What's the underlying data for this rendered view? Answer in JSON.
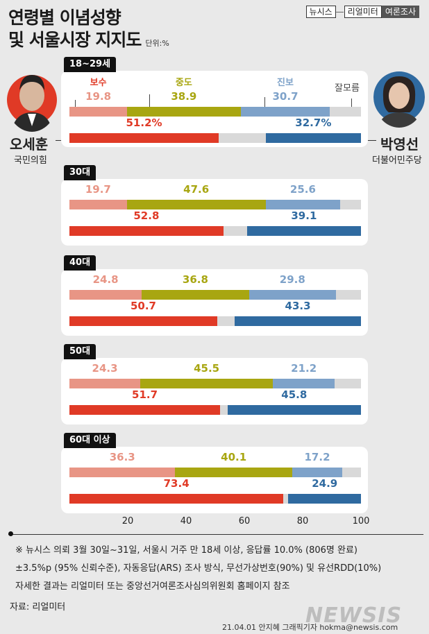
{
  "header": {
    "title_line1": "연령별 이념성향",
    "title_line2": "및 서울시장 지지도",
    "unit": "단위:%",
    "brand_a": "뉴시스",
    "brand_dash": "—",
    "brand_b": "리얼미터",
    "brand_c": "여론조사"
  },
  "candidates": {
    "left": {
      "name": "오세훈",
      "party": "국민의힘",
      "color": "#e03a26"
    },
    "right": {
      "name": "박영선",
      "party": "더불어민주당",
      "color": "#2f6aa0"
    }
  },
  "colors": {
    "conservative": "#e89585",
    "moderate": "#a8a611",
    "progressive": "#7ea2c9",
    "undecided": "#d9d9d9",
    "oh": "#e03a26",
    "park": "#2f6aa0"
  },
  "chart_data": {
    "type": "bar",
    "orientation": "horizontal-stacked",
    "xlim": [
      0,
      100
    ],
    "xticks": [
      20,
      40,
      60,
      80,
      100
    ],
    "ideology_labels": {
      "conservative": "보수",
      "moderate": "중도",
      "progressive": "진보",
      "undecided": "잘모름"
    },
    "groups": [
      {
        "age": "18~29세",
        "ideology": {
          "conservative": 19.8,
          "moderate": 38.9,
          "progressive": 30.7
        },
        "support": {
          "oh": 51.2,
          "park": 32.7
        },
        "oh_label": "51.2%",
        "park_label": "32.7%"
      },
      {
        "age": "30대",
        "ideology": {
          "conservative": 19.7,
          "moderate": 47.6,
          "progressive": 25.6
        },
        "support": {
          "oh": 52.8,
          "park": 39.1
        },
        "oh_label": "52.8",
        "park_label": "39.1"
      },
      {
        "age": "40대",
        "ideology": {
          "conservative": 24.8,
          "moderate": 36.8,
          "progressive": 29.8
        },
        "support": {
          "oh": 50.7,
          "park": 43.3
        },
        "oh_label": "50.7",
        "park_label": "43.3"
      },
      {
        "age": "50대",
        "ideology": {
          "conservative": 24.3,
          "moderate": 45.5,
          "progressive": 21.2
        },
        "support": {
          "oh": 51.7,
          "park": 45.8
        },
        "oh_label": "51.7",
        "park_label": "45.8"
      },
      {
        "age": "60대 이상",
        "ideology": {
          "conservative": 36.3,
          "moderate": 40.1,
          "progressive": 17.2
        },
        "support": {
          "oh": 73.4,
          "park": 24.9
        },
        "oh_label": "73.4",
        "park_label": "24.9"
      }
    ]
  },
  "notes": {
    "line1": "※ 뉴시스 의뢰 3월 30일~31일, 서울시 거주 만 18세 이상, 응답률 10.0% (806명 완료)",
    "line2": "±3.5%p (95% 신뢰수준), 자동응답(ARS) 조사 방식, 무선가상번호(90%) 및 유선RDD(10%)",
    "line3": "자세한 결과는 리얼미터 또는 중앙선거여론조사심의위원회 홈페이지 참조",
    "source": "자료: 리얼미터",
    "credit": "21.04.01 안지혜 그래픽기자 hokma@newsis.com",
    "watermark": "NEWSIS"
  }
}
